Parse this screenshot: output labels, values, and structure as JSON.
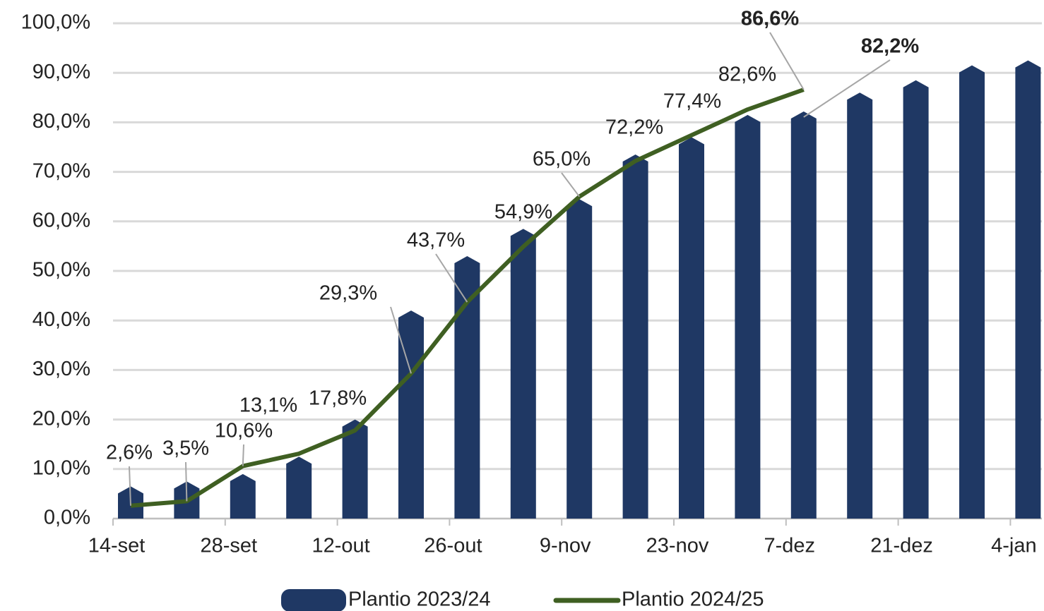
{
  "chart_data": {
    "type": "bar-line",
    "categories": [
      "14-set",
      null,
      "28-set",
      null,
      "12-out",
      null,
      "26-out",
      null,
      "9-nov",
      null,
      "23-nov",
      null,
      "7-dez",
      null,
      "21-dez",
      null,
      "4-jan"
    ],
    "series": [
      {
        "name": "Plantio 2023/24",
        "type": "bar",
        "color": "#1f3864",
        "values": [
          6.5,
          7.5,
          9.0,
          12.5,
          20.0,
          42.0,
          53.0,
          58.5,
          64.5,
          73.5,
          77.0,
          81.5,
          82.2,
          86.0,
          88.5,
          91.5,
          92.5
        ],
        "value_labels": [
          null,
          null,
          null,
          null,
          null,
          null,
          null,
          null,
          null,
          null,
          null,
          null,
          "82,2%",
          null,
          null,
          null,
          null
        ]
      },
      {
        "name": "Plantio 2024/25",
        "type": "line",
        "color": "#3f5f22",
        "values": [
          2.6,
          3.5,
          10.6,
          13.1,
          17.8,
          29.3,
          43.7,
          54.9,
          65.0,
          72.2,
          77.4,
          82.6,
          86.6,
          null,
          null,
          null,
          null
        ],
        "value_labels": [
          "2,6%",
          "3,5%",
          "10,6%",
          "13,1%",
          "17,8%",
          "29,3%",
          "43,7%",
          "54,9%",
          "65,0%",
          "72,2%",
          "77,4%",
          "82,6%",
          "86,6%",
          null,
          null,
          null,
          null
        ]
      }
    ],
    "ylim": [
      0,
      100
    ],
    "yticks": [
      {
        "value": 0,
        "label": "0,0%"
      },
      {
        "value": 10,
        "label": "10,0%"
      },
      {
        "value": 20,
        "label": "20,0%"
      },
      {
        "value": 30,
        "label": "30,0%"
      },
      {
        "value": 40,
        "label": "40,0%"
      },
      {
        "value": 50,
        "label": "50,0%"
      },
      {
        "value": 60,
        "label": "60,0%"
      },
      {
        "value": 70,
        "label": "70,0%"
      },
      {
        "value": 80,
        "label": "80,0%"
      },
      {
        "value": 90,
        "label": "90,0%"
      },
      {
        "value": 100,
        "label": "100,0%"
      }
    ],
    "grid": true,
    "legend": "bottom"
  }
}
